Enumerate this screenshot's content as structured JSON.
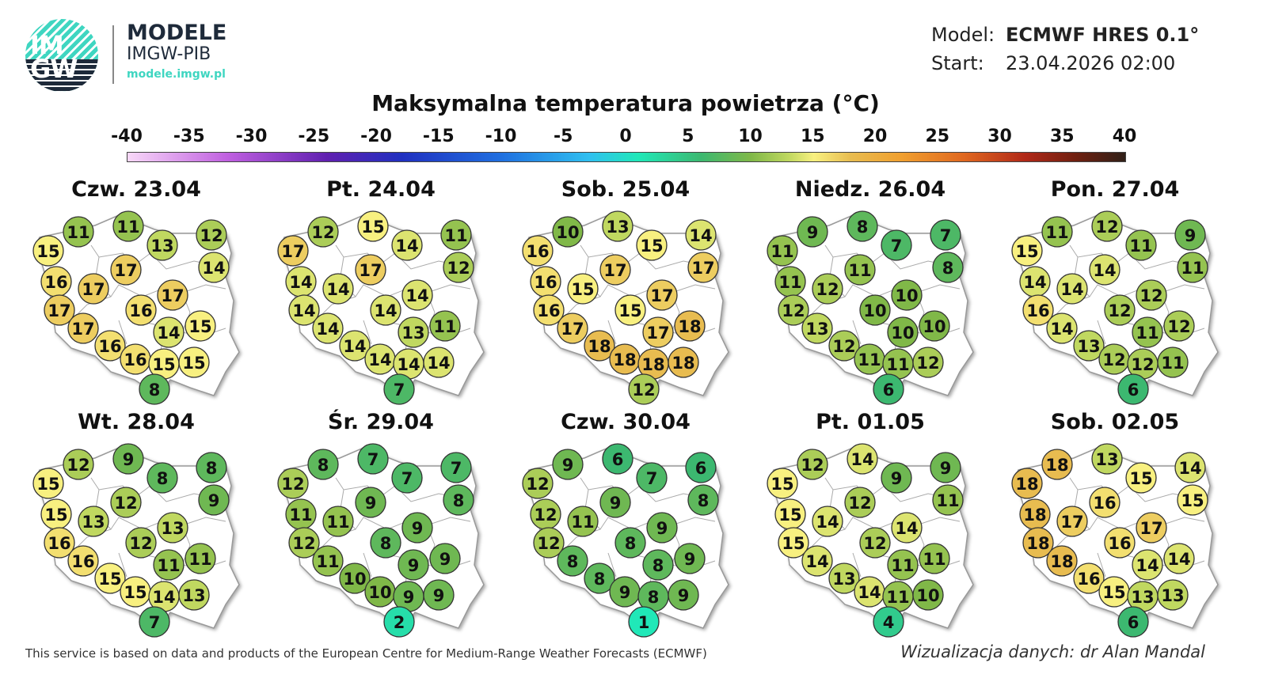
{
  "header": {
    "logo_text": "IMGW",
    "brand_title": "MODELE",
    "brand_subtitle": "IMGW-PIB",
    "brand_url": "modele.imgw.pl",
    "model_label": "Model:",
    "model_value": "ECMWF HRES 0.1°",
    "start_label": "Start:",
    "start_value": "23.04.2026 02:00"
  },
  "title": "Maksymalna temperatura powietrza (°C)",
  "colorbar": {
    "ticks": [
      "-40",
      "-35",
      "-30",
      "-25",
      "-20",
      "-15",
      "-10",
      "-5",
      "0",
      "5",
      "10",
      "15",
      "20",
      "25",
      "30",
      "35",
      "40"
    ],
    "stops": [
      {
        "v": -40,
        "c": "#f8d8f8"
      },
      {
        "v": -32,
        "c": "#c060e0"
      },
      {
        "v": -24,
        "c": "#6020b0"
      },
      {
        "v": -18,
        "c": "#2030c0"
      },
      {
        "v": -10,
        "c": "#2070e0"
      },
      {
        "v": -3,
        "c": "#30c0f0"
      },
      {
        "v": 1,
        "c": "#20e8b8"
      },
      {
        "v": 6,
        "c": "#3cb870"
      },
      {
        "v": 10,
        "c": "#80b848"
      },
      {
        "v": 13,
        "c": "#c0d860"
      },
      {
        "v": 15,
        "c": "#f8f080"
      },
      {
        "v": 18,
        "c": "#e8bc50"
      },
      {
        "v": 22,
        "c": "#f0a030"
      },
      {
        "v": 27,
        "c": "#e06820"
      },
      {
        "v": 32,
        "c": "#b02818"
      },
      {
        "v": 36,
        "c": "#702010"
      },
      {
        "v": 40,
        "c": "#302018"
      }
    ]
  },
  "days": [
    {
      "label": "Czw. 23.04",
      "values": [
        11,
        11,
        15,
        13,
        12,
        17,
        14,
        16,
        17,
        17,
        17,
        16,
        17,
        14,
        15,
        16,
        16,
        15,
        15,
        8
      ]
    },
    {
      "label": "Pt. 24.04",
      "values": [
        12,
        15,
        17,
        14,
        11,
        17,
        12,
        14,
        14,
        14,
        14,
        14,
        14,
        13,
        11,
        14,
        14,
        14,
        14,
        7
      ]
    },
    {
      "label": "Sob. 25.04",
      "values": [
        10,
        13,
        16,
        15,
        14,
        17,
        17,
        16,
        15,
        16,
        17,
        15,
        17,
        17,
        18,
        18,
        18,
        18,
        18,
        12
      ]
    },
    {
      "label": "Niedz. 26.04",
      "values": [
        9,
        8,
        11,
        7,
        7,
        11,
        8,
        11,
        12,
        12,
        10,
        10,
        13,
        10,
        10,
        12,
        11,
        11,
        12,
        6
      ]
    },
    {
      "label": "Pon. 27.04",
      "values": [
        11,
        12,
        15,
        11,
        9,
        14,
        11,
        14,
        14,
        16,
        12,
        12,
        14,
        11,
        12,
        13,
        12,
        12,
        11,
        6
      ]
    },
    {
      "label": "Wt. 28.04",
      "values": [
        12,
        9,
        15,
        8,
        8,
        12,
        9,
        15,
        13,
        16,
        13,
        12,
        16,
        11,
        11,
        15,
        15,
        14,
        13,
        7
      ]
    },
    {
      "label": "Śr. 29.04",
      "values": [
        8,
        7,
        12,
        7,
        7,
        9,
        8,
        11,
        11,
        12,
        9,
        8,
        11,
        9,
        9,
        10,
        10,
        9,
        9,
        2
      ]
    },
    {
      "label": "Czw. 30.04",
      "values": [
        9,
        6,
        12,
        7,
        6,
        9,
        8,
        12,
        11,
        12,
        9,
        8,
        8,
        8,
        9,
        8,
        9,
        8,
        9,
        1
      ]
    },
    {
      "label": "Pt. 01.05",
      "values": [
        12,
        14,
        15,
        9,
        9,
        12,
        11,
        15,
        14,
        15,
        14,
        12,
        14,
        11,
        11,
        13,
        14,
        11,
        10,
        4
      ]
    },
    {
      "label": "Sob. 02.05",
      "values": [
        18,
        13,
        18,
        15,
        14,
        16,
        15,
        18,
        17,
        18,
        17,
        16,
        18,
        14,
        14,
        16,
        15,
        13,
        13,
        6
      ]
    }
  ],
  "footer": {
    "source": "This service is based on data and products of the European Centre for Medium-Range Weather Forecasts (ECMWF)",
    "credit": "Wizualizacja danych: dr Alan Mandal"
  }
}
